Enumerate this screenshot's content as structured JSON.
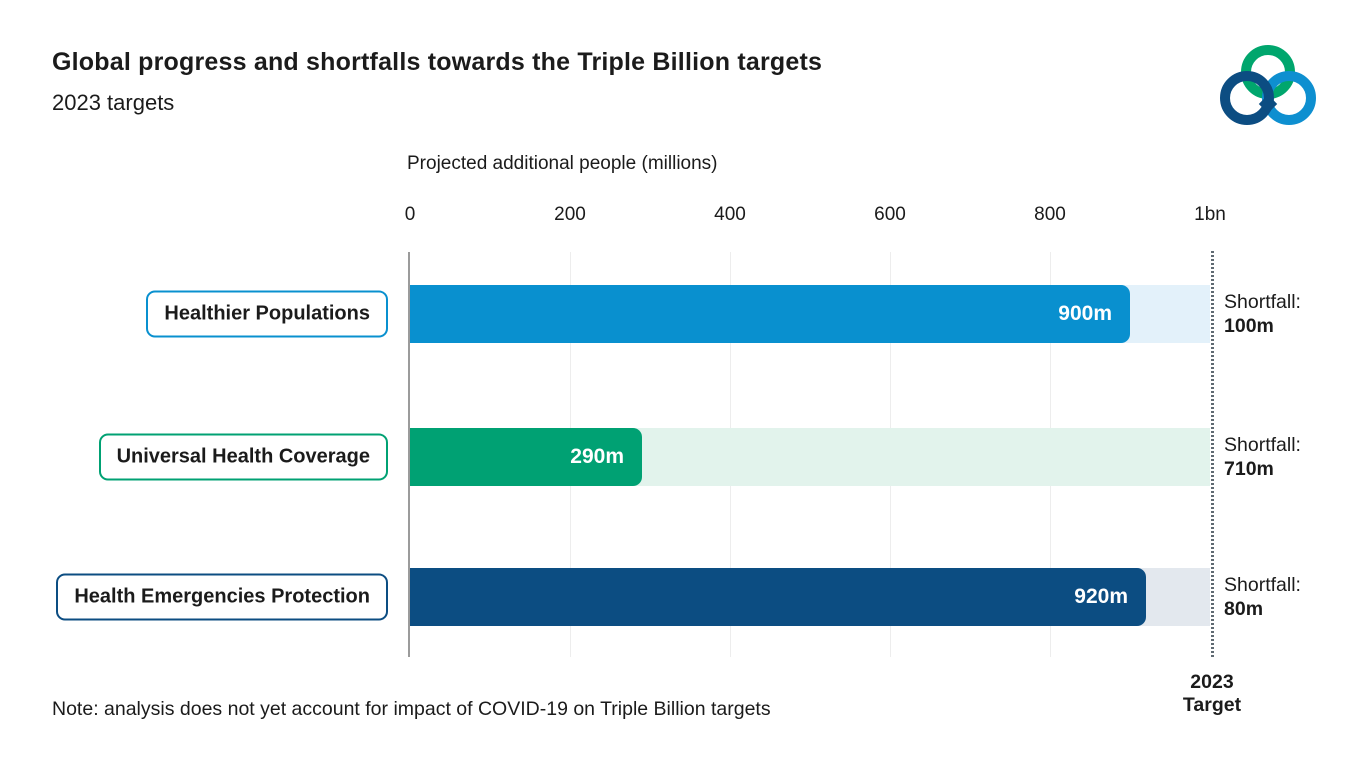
{
  "header": {
    "title": "Global progress and shortfalls towards the Triple Billion targets",
    "subtitle": "2023 targets"
  },
  "logo": {
    "label": "Triple Billion logo",
    "green": "#00a66d",
    "dark_blue": "#0c4d82",
    "light_blue": "#0e8fd0"
  },
  "note": "Note: analysis does not yet account for impact of COVID-19 on Triple Billion targets",
  "target_annotation": {
    "line1": "2023",
    "line2": "Target"
  },
  "chart_data": {
    "type": "bar",
    "orientation": "horizontal",
    "axis_title": "Projected additional people (millions)",
    "xlim": [
      0,
      1000
    ],
    "grid": true,
    "x_ticks": [
      {
        "label": "0",
        "value": 0
      },
      {
        "label": "200",
        "value": 200
      },
      {
        "label": "400",
        "value": 400
      },
      {
        "label": "600",
        "value": 600
      },
      {
        "label": "800",
        "value": 800
      },
      {
        "label": "1bn",
        "value": 1000
      }
    ],
    "target": {
      "value": 1000,
      "label": "2023 Target"
    },
    "categories": [
      "Healthier Populations",
      "Universal Health Coverage",
      "Health Emergencies Protection"
    ],
    "series": [
      {
        "name": "Healthier Populations",
        "value": 900,
        "value_label": "900m",
        "shortfall": 100,
        "shortfall_prefix": "Shortfall:",
        "shortfall_label": "100m",
        "bar_color": "#0990cf",
        "track_color": "#e3f1fa"
      },
      {
        "name": "Universal Health Coverage",
        "value": 290,
        "value_label": "290m",
        "shortfall": 710,
        "shortfall_prefix": "Shortfall:",
        "shortfall_label": "710m",
        "bar_color": "#00a173",
        "track_color": "#e2f3ec"
      },
      {
        "name": "Health Emergencies Protection",
        "value": 920,
        "value_label": "920m",
        "shortfall": 80,
        "shortfall_prefix": "Shortfall:",
        "shortfall_label": "80m",
        "bar_color": "#0c4d82",
        "track_color": "#e3e8ee"
      }
    ]
  }
}
